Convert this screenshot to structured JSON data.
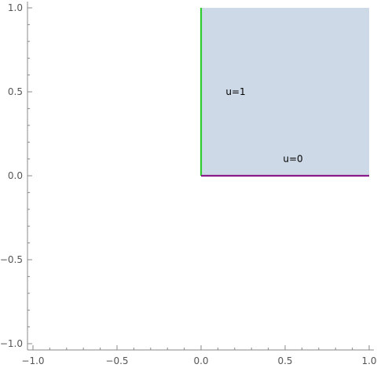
{
  "chart_data": {
    "type": "area",
    "xlim": [
      -1.0,
      1.0
    ],
    "ylim": [
      -1.0,
      1.0
    ],
    "grid": false,
    "legend": "none",
    "x_ticks": [
      "−1.0",
      "−0.5",
      "0.0",
      "0.5",
      "1.0"
    ],
    "y_ticks": [
      "−1.0",
      "−0.5",
      "0.0",
      "0.5",
      "1.0"
    ],
    "x_tick_values": [
      -1.0,
      -0.5,
      0.0,
      0.5,
      1.0
    ],
    "y_tick_values": [
      -1.0,
      -0.5,
      0.0,
      0.5,
      1.0
    ],
    "region": {
      "x": [
        0.0,
        1.0
      ],
      "y": [
        0.0,
        1.0
      ],
      "color": "#cdd9e6"
    },
    "boundaries": [
      {
        "label": "u=1",
        "x": [
          0.0,
          0.0
        ],
        "y": [
          0.0,
          1.0
        ],
        "color": "#2ecc2e",
        "label_at": [
          0.1,
          0.5
        ]
      },
      {
        "label": "u=0",
        "x": [
          0.0,
          1.0
        ],
        "y": [
          0.0,
          0.0
        ],
        "color": "#8b1a8b",
        "label_at": [
          0.5,
          0.1
        ]
      }
    ]
  }
}
